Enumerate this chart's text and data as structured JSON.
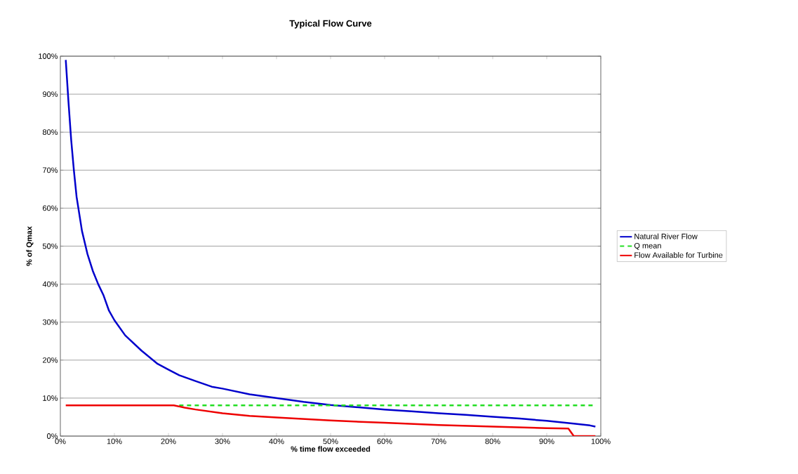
{
  "chart_data": {
    "type": "line",
    "title": "Typical Flow Curve",
    "xlabel": "% time flow exceeded",
    "ylabel": "% of Qmax",
    "xlim": [
      0,
      100
    ],
    "ylim": [
      0,
      100
    ],
    "xticks": [
      {
        "value": 0,
        "label": "0%"
      },
      {
        "value": 10,
        "label": "10%"
      },
      {
        "value": 20,
        "label": "20%"
      },
      {
        "value": 30,
        "label": "30%"
      },
      {
        "value": 40,
        "label": "40%"
      },
      {
        "value": 50,
        "label": "50%"
      },
      {
        "value": 60,
        "label": "60%"
      },
      {
        "value": 70,
        "label": "70%"
      },
      {
        "value": 80,
        "label": "80%"
      },
      {
        "value": 90,
        "label": "90%"
      },
      {
        "value": 100,
        "label": "100%"
      }
    ],
    "yticks": [
      {
        "value": 0,
        "label": "0%"
      },
      {
        "value": 10,
        "label": "10%"
      },
      {
        "value": 20,
        "label": "20%"
      },
      {
        "value": 30,
        "label": "30%"
      },
      {
        "value": 40,
        "label": "40%"
      },
      {
        "value": 50,
        "label": "50%"
      },
      {
        "value": 60,
        "label": "60%"
      },
      {
        "value": 70,
        "label": "70%"
      },
      {
        "value": 80,
        "label": "80%"
      },
      {
        "value": 90,
        "label": "90%"
      },
      {
        "value": 100,
        "label": "100%"
      }
    ],
    "grid": "y",
    "legend": "right",
    "series": [
      {
        "name": "Natural River Flow",
        "color": "#0000cc",
        "line_style": "solid",
        "x": [
          1,
          1.5,
          2,
          2.5,
          3,
          4,
          5,
          6,
          7,
          8,
          9,
          10,
          12,
          15,
          18,
          20,
          22,
          25,
          28,
          30,
          35,
          40,
          45,
          50,
          55,
          60,
          65,
          70,
          75,
          80,
          85,
          90,
          95,
          98,
          99
        ],
        "values": [
          99,
          88,
          78,
          70,
          63,
          54,
          48,
          43.5,
          40,
          37,
          33,
          30.5,
          26.5,
          22.5,
          19,
          17.5,
          16,
          14.5,
          13,
          12.5,
          11,
          10,
          9,
          8.2,
          7.6,
          7,
          6.5,
          6,
          5.6,
          5.1,
          4.6,
          4,
          3.3,
          2.8,
          2.5
        ]
      },
      {
        "name": "Q mean",
        "color": "#22dd22",
        "line_style": "dashed",
        "x": [
          22,
          99
        ],
        "values": [
          8.1,
          8.1
        ]
      },
      {
        "name": "Flow Available for Turbine",
        "color": "#ee0000",
        "line_style": "solid",
        "x": [
          1,
          21,
          23,
          25,
          30,
          35,
          40,
          50,
          60,
          70,
          80,
          90,
          94,
          95,
          99
        ],
        "values": [
          8.1,
          8.1,
          7.5,
          7,
          6,
          5.3,
          4.9,
          4.1,
          3.5,
          2.9,
          2.5,
          2.1,
          2,
          0,
          0
        ]
      }
    ]
  }
}
